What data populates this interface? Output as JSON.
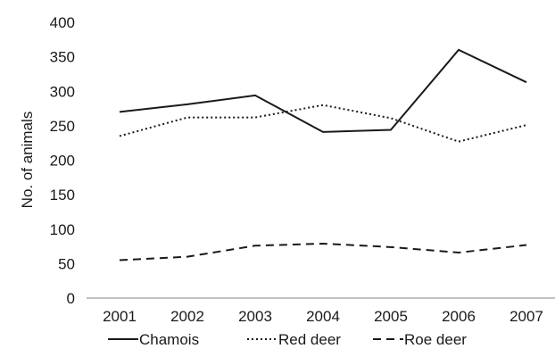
{
  "chart_data": {
    "type": "line",
    "title": "",
    "xlabel": "",
    "ylabel": "No. of animals",
    "categories": [
      "2001",
      "2002",
      "2003",
      "2004",
      "2005",
      "2006",
      "2007"
    ],
    "ylim": [
      0,
      400
    ],
    "yticks": [
      0,
      50,
      100,
      150,
      200,
      250,
      300,
      350,
      400
    ],
    "grid": false,
    "legend_position": "bottom",
    "series": [
      {
        "name": "Chamois",
        "values": [
          270,
          281,
          294,
          241,
          244,
          360,
          313
        ],
        "color": "#1a1a1a",
        "line_style": "solid"
      },
      {
        "name": "Red deer",
        "values": [
          235,
          262,
          262,
          280,
          261,
          227,
          251
        ],
        "color": "#1a1a1a",
        "line_style": "dotted"
      },
      {
        "name": "Roe deer",
        "values": [
          55,
          60,
          76,
          79,
          74,
          66,
          77
        ],
        "color": "#1a1a1a",
        "line_style": "dashed"
      }
    ]
  }
}
